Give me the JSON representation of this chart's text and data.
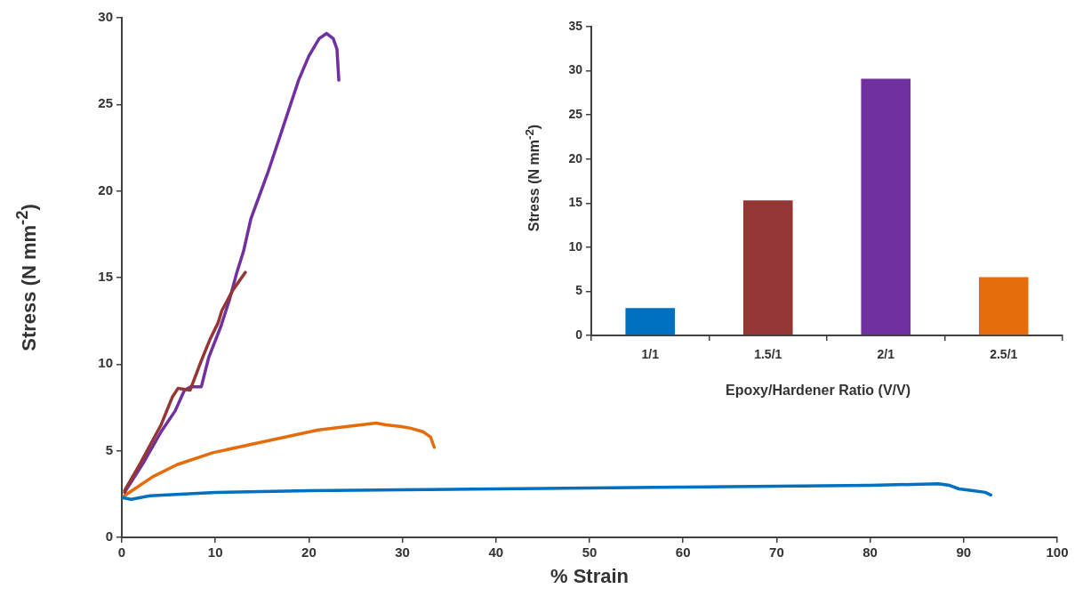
{
  "chart_data": [
    {
      "type": "line",
      "xlabel": "% Strain",
      "ylabel": "Stress (N mm$^{-2}$)",
      "xlim": [
        0,
        100
      ],
      "xticks": [
        0,
        10,
        20,
        30,
        40,
        50,
        60,
        70,
        80,
        90,
        100
      ],
      "ylim": [
        0,
        30
      ],
      "yticks": [
        0,
        5,
        10,
        15,
        20,
        25,
        30
      ],
      "grid": false,
      "legend": false,
      "marker": "none",
      "series": [
        {
          "color": "#0070c0",
          "x": [
            0,
            1,
            3,
            10,
            20,
            30,
            40,
            50,
            60,
            70,
            80,
            87.3,
            88.5,
            89.5,
            91,
            92.3,
            92.9
          ],
          "values": [
            2.3,
            2.2,
            2.4,
            2.6,
            2.7,
            2.75,
            2.8,
            2.85,
            2.9,
            2.95,
            3.0,
            3.1,
            3.0,
            2.8,
            2.7,
            2.6,
            2.45
          ]
        },
        {
          "color": "#943634",
          "x": [
            0.3,
            2.0,
            4.2,
            5.4,
            6.0,
            7.3,
            8.5,
            9.4,
            10.3,
            10.7,
            11.9,
            13.2
          ],
          "values": [
            2.7,
            4.3,
            6.5,
            8.1,
            8.6,
            8.5,
            10.2,
            11.4,
            12.4,
            13.1,
            14.3,
            15.3
          ]
        },
        {
          "color": "#7030a0",
          "x": [
            0.3,
            2.3,
            4.2,
            5.7,
            6.7,
            7.4,
            8.5,
            9.3,
            10.6,
            11.5,
            12.3,
            13.0,
            13.8,
            15.7,
            17.0,
            18.9,
            20.0,
            21.1,
            21.9,
            22.6,
            23.0,
            23.2
          ],
          "values": [
            2.6,
            4.3,
            6.1,
            7.3,
            8.5,
            8.7,
            8.7,
            10.4,
            12.2,
            13.7,
            15.3,
            16.5,
            18.4,
            21.2,
            23.3,
            26.4,
            27.8,
            28.8,
            29.1,
            28.8,
            28.2,
            26.4
          ]
        },
        {
          "color": "#e46c0a",
          "x": [
            0,
            3.3,
            5.9,
            9.8,
            15.8,
            21,
            25.6,
            27.2,
            28.2,
            29.9,
            30.9,
            32.2,
            33.0,
            33.4
          ],
          "values": [
            2.3,
            3.5,
            4.2,
            4.9,
            5.6,
            6.2,
            6.5,
            6.6,
            6.5,
            6.4,
            6.3,
            6.1,
            5.8,
            5.2
          ]
        }
      ]
    },
    {
      "type": "bar",
      "xlabel": "Epoxy/Hardener Ratio (V/V)",
      "ylabel": "Stress (N mm$^{-2}$)",
      "categories": [
        "1/1",
        "1.5/1",
        "2/1",
        "2.5/1"
      ],
      "values": [
        3.1,
        15.3,
        29.1,
        6.6
      ],
      "colors": [
        "#0070c0",
        "#943634",
        "#7030a0",
        "#e46c0a"
      ],
      "ylim": [
        0,
        35
      ],
      "yticks": [
        0,
        5,
        10,
        15,
        20,
        25,
        30,
        35
      ],
      "grid": false,
      "legend": false
    }
  ]
}
